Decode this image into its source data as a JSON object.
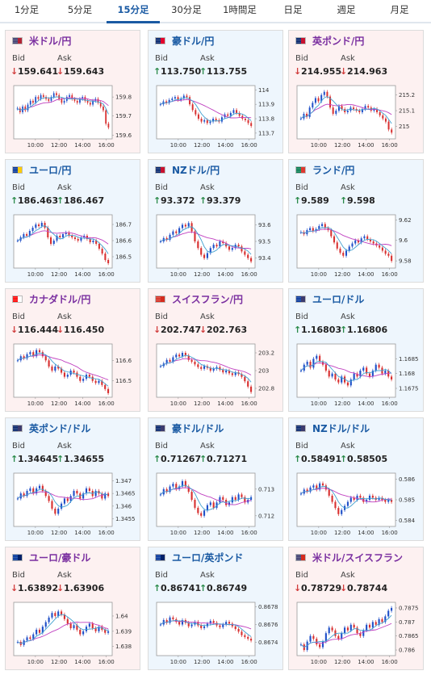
{
  "tabs": [
    {
      "label": "1分足",
      "active": false
    },
    {
      "label": "5分足",
      "active": false
    },
    {
      "label": "15分足",
      "active": true
    },
    {
      "label": "30分足",
      "active": false
    },
    {
      "label": "1時間足",
      "active": false
    },
    {
      "label": "日足",
      "active": false
    },
    {
      "label": "週足",
      "active": false
    },
    {
      "label": "月足",
      "active": false
    }
  ],
  "labels": {
    "bid": "Bid",
    "ask": "Ask"
  },
  "colors": {
    "up_candle": "#2050c8",
    "down_candle": "#d83030",
    "ma": "#c040c0",
    "ma2": "#40a0d0",
    "frame": "#999999"
  },
  "x_ticks": [
    "10:00",
    "12:00",
    "14:00",
    "16:00"
  ],
  "cards": [
    {
      "pair": "米ドル/円",
      "flag": [
        "#3c3b6e",
        "#b22234"
      ],
      "direction": "down",
      "bid": "159.641",
      "ask": "159.643",
      "y_ticks": [
        "159.8",
        "159.7",
        "159.6"
      ],
      "y_range": [
        159.58,
        159.86
      ],
      "series": [
        159.74,
        159.72,
        159.75,
        159.73,
        159.76,
        159.78,
        159.77,
        159.8,
        159.79,
        159.81,
        159.8,
        159.79,
        159.78,
        159.8,
        159.82,
        159.81,
        159.79,
        159.77,
        159.78,
        159.8,
        159.81,
        159.79,
        159.78,
        159.77,
        159.79,
        159.8,
        159.78,
        159.77,
        159.76,
        159.78,
        159.79,
        159.77,
        159.75,
        159.73,
        159.66,
        159.64
      ]
    },
    {
      "pair": "豪ドル/円",
      "flag": [
        "#012169",
        "#e4002b"
      ],
      "direction": "up",
      "bid": "113.750",
      "ask": "113.755",
      "y_ticks": [
        "114",
        "113.9",
        "113.8",
        "113.7"
      ],
      "y_range": [
        113.66,
        114.03
      ],
      "series": [
        113.9,
        113.92,
        113.91,
        113.93,
        113.94,
        113.95,
        113.93,
        113.94,
        113.96,
        113.95,
        113.9,
        113.86,
        113.83,
        113.8,
        113.78,
        113.79,
        113.77,
        113.78,
        113.8,
        113.79,
        113.78,
        113.81,
        113.83,
        113.82,
        113.84,
        113.86,
        113.84,
        113.82,
        113.8,
        113.79,
        113.77,
        113.75
      ]
    },
    {
      "pair": "英ポンド/円",
      "flag": [
        "#012169",
        "#c8102e"
      ],
      "direction": "down",
      "bid": "214.955",
      "ask": "214.963",
      "y_ticks": [
        "215.2",
        "215.1",
        "215"
      ],
      "y_range": [
        214.92,
        215.26
      ],
      "series": [
        215.05,
        215.08,
        215.06,
        215.12,
        215.15,
        215.18,
        215.16,
        215.2,
        215.22,
        215.19,
        215.12,
        215.08,
        215.1,
        215.13,
        215.11,
        215.09,
        215.1,
        215.12,
        215.11,
        215.1,
        215.09,
        215.11,
        215.13,
        215.12,
        215.1,
        215.11,
        215.09,
        215.07,
        215.05,
        215.03,
        214.98,
        214.96
      ]
    },
    {
      "pair": "ユーロ/円",
      "flag": [
        "#003399",
        "#ffcc00"
      ],
      "direction": "up",
      "bid": "186.463",
      "ask": "186.467",
      "y_ticks": [
        "186.7",
        "186.6",
        "186.5"
      ],
      "y_range": [
        186.43,
        186.76
      ],
      "series": [
        186.6,
        186.62,
        186.64,
        186.63,
        186.66,
        186.68,
        186.7,
        186.69,
        186.71,
        186.68,
        186.62,
        186.58,
        186.6,
        186.63,
        186.62,
        186.64,
        186.65,
        186.63,
        186.62,
        186.61,
        186.6,
        186.62,
        186.63,
        186.61,
        186.59,
        186.6,
        186.58,
        186.55,
        186.52,
        186.48,
        186.46
      ]
    },
    {
      "pair": "NZドル/円",
      "flag": [
        "#012169",
        "#c8102e"
      ],
      "direction": "up",
      "bid": "93.372",
      "ask": "93.379",
      "y_ticks": [
        "93.6",
        "93.5",
        "93.4"
      ],
      "y_range": [
        93.34,
        93.66
      ],
      "series": [
        93.5,
        93.52,
        93.51,
        93.54,
        93.56,
        93.55,
        93.58,
        93.6,
        93.59,
        93.61,
        93.56,
        93.5,
        93.46,
        93.42,
        93.4,
        93.43,
        93.46,
        93.48,
        93.47,
        93.5,
        93.49,
        93.47,
        93.45,
        93.46,
        93.48,
        93.47,
        93.44,
        93.42,
        93.4,
        93.38
      ]
    },
    {
      "pair": "ランド/円",
      "flag": [
        "#007a4d",
        "#de3831"
      ],
      "direction": "up",
      "bid": "9.589",
      "ask": "9.598",
      "y_ticks": [
        "9.62",
        "9.6",
        "9.58"
      ],
      "y_range": [
        9.573,
        9.625
      ],
      "series": [
        9.608,
        9.606,
        9.61,
        9.612,
        9.609,
        9.611,
        9.614,
        9.616,
        9.612,
        9.61,
        9.604,
        9.598,
        9.592,
        9.588,
        9.585,
        9.59,
        9.594,
        9.597,
        9.6,
        9.598,
        9.602,
        9.604,
        9.601,
        9.599,
        9.597,
        9.595,
        9.593,
        9.59,
        9.587,
        9.585,
        9.58
      ]
    },
    {
      "pair": "カナダドル/円",
      "flag": [
        "#ff0000",
        "#ffffff"
      ],
      "direction": "down",
      "bid": "116.444",
      "ask": "116.450",
      "y_ticks": [
        "116.6",
        "116.5"
      ],
      "y_range": [
        116.42,
        116.68
      ],
      "series": [
        116.6,
        116.62,
        116.61,
        116.63,
        116.64,
        116.62,
        116.65,
        116.64,
        116.62,
        116.6,
        116.57,
        116.55,
        116.57,
        116.56,
        116.54,
        116.52,
        116.53,
        116.55,
        116.54,
        116.52,
        116.5,
        116.51,
        116.53,
        116.52,
        116.5,
        116.49,
        116.5,
        116.48,
        116.46,
        116.44
      ]
    },
    {
      "pair": "スイスフラン/円",
      "flag": [
        "#d52b1e",
        "#d52b1e"
      ],
      "direction": "down",
      "bid": "202.747",
      "ask": "202.763",
      "y_ticks": [
        "203.2",
        "203",
        "202.8"
      ],
      "y_range": [
        202.7,
        203.3
      ],
      "series": [
        203.05,
        203.08,
        203.12,
        203.1,
        203.15,
        203.18,
        203.16,
        203.2,
        203.17,
        203.12,
        203.1,
        203.07,
        203.04,
        203.02,
        203.05,
        203.03,
        203.0,
        203.02,
        203.04,
        203.01,
        202.98,
        203.0,
        202.97,
        202.95,
        202.98,
        202.96,
        202.93,
        202.88,
        202.82,
        202.76
      ]
    },
    {
      "pair": "ユーロ/ドル",
      "flag": [
        "#003399",
        "#3c3b6e"
      ],
      "direction": "up",
      "bid": "1.16803",
      "ask": "1.16806",
      "y_ticks": [
        "1.1685",
        "1.168",
        "1.1675"
      ],
      "y_range": [
        1.1672,
        1.169
      ],
      "series": [
        1.1681,
        1.1683,
        1.1684,
        1.1682,
        1.1685,
        1.1686,
        1.1684,
        1.1683,
        1.1681,
        1.1679,
        1.168,
        1.1678,
        1.1677,
        1.1679,
        1.1677,
        1.1676,
        1.1678,
        1.168,
        1.1679,
        1.1681,
        1.1682,
        1.168,
        1.1679,
        1.1681,
        1.1683,
        1.1682,
        1.168,
        1.1681,
        1.1679,
        1.1678
      ]
    },
    {
      "pair": "英ポンド/ドル",
      "flag": [
        "#012169",
        "#3c3b6e"
      ],
      "direction": "up",
      "bid": "1.34645",
      "ask": "1.34655",
      "y_ticks": [
        "1.347",
        "1.3465",
        "1.346",
        "1.3455"
      ],
      "y_range": [
        1.3452,
        1.3473
      ],
      "series": [
        1.3463,
        1.3465,
        1.3464,
        1.3466,
        1.3467,
        1.3465,
        1.3467,
        1.3468,
        1.3466,
        1.3464,
        1.3462,
        1.3459,
        1.3457,
        1.3459,
        1.3461,
        1.3463,
        1.3462,
        1.3464,
        1.3466,
        1.3465,
        1.3463,
        1.3465,
        1.3467,
        1.3466,
        1.3464,
        1.3466,
        1.3465,
        1.3463,
        1.3465,
        1.3464
      ]
    },
    {
      "pair": "豪ドル/ドル",
      "flag": [
        "#012169",
        "#3c3b6e"
      ],
      "direction": "up",
      "bid": "0.71267",
      "ask": "0.71271",
      "y_ticks": [
        "0.713",
        "0.712"
      ],
      "y_range": [
        0.7116,
        0.7136
      ],
      "series": [
        0.7128,
        0.713,
        0.7129,
        0.7131,
        0.7132,
        0.713,
        0.7131,
        0.7133,
        0.7131,
        0.7129,
        0.7126,
        0.7123,
        0.7121,
        0.712,
        0.7122,
        0.7124,
        0.7125,
        0.7123,
        0.7125,
        0.7127,
        0.7126,
        0.7124,
        0.7125,
        0.7127,
        0.7126,
        0.7128,
        0.7127,
        0.7125,
        0.7126,
        0.7127
      ]
    },
    {
      "pair": "NZドル/ドル",
      "flag": [
        "#012169",
        "#3c3b6e"
      ],
      "direction": "up",
      "bid": "0.58491",
      "ask": "0.58505",
      "y_ticks": [
        "0.586",
        "0.585",
        "0.584"
      ],
      "y_range": [
        0.5837,
        0.5863
      ],
      "series": [
        0.5853,
        0.5855,
        0.5854,
        0.5856,
        0.5857,
        0.5855,
        0.5858,
        0.5857,
        0.5855,
        0.5852,
        0.5849,
        0.5846,
        0.5843,
        0.5845,
        0.5847,
        0.5849,
        0.5851,
        0.585,
        0.5852,
        0.5851,
        0.5849,
        0.585,
        0.5852,
        0.5851,
        0.585,
        0.5851,
        0.585,
        0.5849,
        0.585,
        0.5849
      ]
    },
    {
      "pair": "ユーロ/豪ドル",
      "flag": [
        "#003399",
        "#012169"
      ],
      "direction": "down",
      "bid": "1.63892",
      "ask": "1.63906",
      "y_ticks": [
        "1.64",
        "1.639",
        "1.638"
      ],
      "y_range": [
        1.6374,
        1.6409
      ],
      "series": [
        1.6383,
        1.6381,
        1.6384,
        1.6386,
        1.6385,
        1.6388,
        1.6391,
        1.6389,
        1.6393,
        1.6396,
        1.6399,
        1.6402,
        1.64,
        1.6403,
        1.6401,
        1.6398,
        1.6395,
        1.6392,
        1.6394,
        1.6391,
        1.6388,
        1.639,
        1.6393,
        1.6395,
        1.6392,
        1.639,
        1.6393,
        1.6391,
        1.6389,
        1.639
      ]
    },
    {
      "pair": "ユーロ/英ポンド",
      "flag": [
        "#003399",
        "#012169"
      ],
      "direction": "up",
      "bid": "0.86741",
      "ask": "0.86749",
      "y_ticks": [
        "0.8678",
        "0.8676",
        "0.8674"
      ],
      "y_range": [
        0.86725,
        0.86785
      ],
      "series": [
        0.8676,
        0.86765,
        0.86762,
        0.86768,
        0.86766,
        0.86763,
        0.8676,
        0.86765,
        0.86762,
        0.86758,
        0.8676,
        0.86763,
        0.86759,
        0.86756,
        0.86758,
        0.86761,
        0.86764,
        0.86762,
        0.86759,
        0.86757,
        0.8676,
        0.86763,
        0.86761,
        0.86758,
        0.86755,
        0.86752,
        0.86748,
        0.86746,
        0.86744,
        0.86742
      ]
    },
    {
      "pair": "米ドル/スイスフラン",
      "flag": [
        "#3c3b6e",
        "#d52b1e"
      ],
      "direction": "down",
      "bid": "0.78729",
      "ask": "0.78744",
      "y_ticks": [
        "0.7875",
        "0.787",
        "0.7865",
        "0.786"
      ],
      "y_range": [
        0.7858,
        0.7877
      ],
      "series": [
        0.7862,
        0.786,
        0.7863,
        0.7865,
        0.7864,
        0.7862,
        0.7861,
        0.7863,
        0.7866,
        0.7868,
        0.7867,
        0.7865,
        0.7864,
        0.7866,
        0.7868,
        0.7867,
        0.7869,
        0.7868,
        0.7866,
        0.7865,
        0.7867,
        0.7869,
        0.7868,
        0.787,
        0.7869,
        0.7871,
        0.787,
        0.7872,
        0.7874,
        0.7875
      ]
    }
  ]
}
